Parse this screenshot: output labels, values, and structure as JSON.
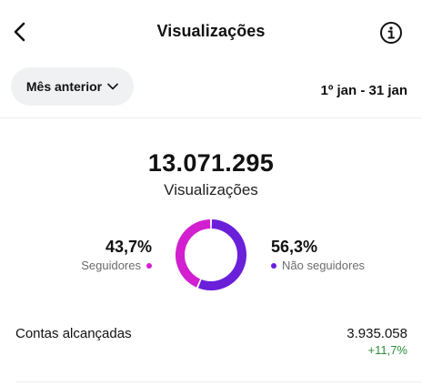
{
  "header": {
    "title": "Visualizações",
    "back_icon": "chevron-left-icon",
    "info_icon": "info-circle-icon"
  },
  "filter": {
    "period_label": "Mês anterior",
    "dropdown_icon": "chevron-down-icon",
    "date_range": "1º jan - 31 jan"
  },
  "summary": {
    "total_views": "13.071.295",
    "total_label": "Visualizações"
  },
  "breakdown": {
    "followers": {
      "percent_text": "43,7%",
      "percent": 43.7,
      "label": "Seguidores",
      "color": "#d21fd0"
    },
    "non_followers": {
      "percent_text": "56,3%",
      "percent": 56.3,
      "label": "Não seguidores",
      "color": "#6a1fd9"
    }
  },
  "reach": {
    "label": "Contas alcançadas",
    "value": "3.935.058",
    "change": "+11,7%",
    "change_color": "#2e8b3a"
  }
}
